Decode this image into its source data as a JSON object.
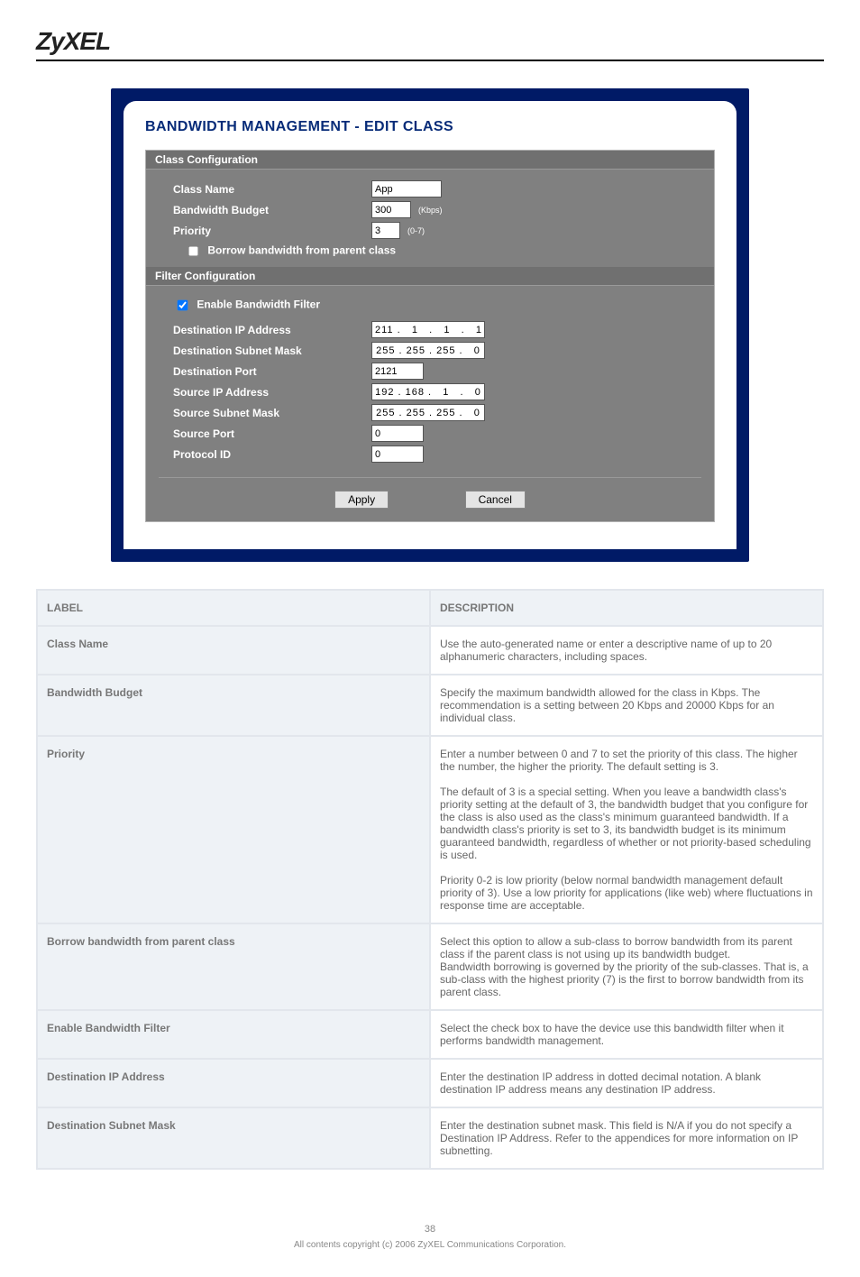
{
  "brand": "ZyXEL",
  "screenshot": {
    "title": "BANDWIDTH MANAGEMENT - EDIT CLASS",
    "section_class": "Class Configuration",
    "section_filter": "Filter Configuration",
    "class_name_label": "Class Name",
    "class_name_value": "App",
    "bw_budget_label": "Bandwidth Budget",
    "bw_budget_value": "300",
    "bw_budget_hint": "(Kbps)",
    "priority_label": "Priority",
    "priority_value": "3",
    "priority_hint": "(0-7)",
    "borrow_label": "Borrow bandwidth from parent class",
    "enable_filter_label": "Enable Bandwidth Filter",
    "dest_ip_label": "Destination IP Address",
    "dest_ip_value": "211 .   1   .   1   .   1",
    "dest_mask_label": "Destination Subnet Mask",
    "dest_mask_value": "255 . 255 . 255 .   0",
    "dest_port_label": "Destination Port",
    "dest_port_value": "2121",
    "src_ip_label": "Source IP Address",
    "src_ip_value": "192 . 168 .   1   .   0",
    "src_mask_label": "Source Subnet Mask",
    "src_mask_value": "255 . 255 . 255 .   0",
    "src_port_label": "Source Port",
    "src_port_value": "0",
    "proto_label": "Protocol ID",
    "proto_value": "0",
    "btn_apply": "Apply",
    "btn_cancel": "Cancel"
  },
  "table": {
    "header_label": "LABEL",
    "header_desc": "DESCRIPTION",
    "rows": [
      {
        "label": "Class Name",
        "desc": "Use the auto-generated name or enter a descriptive name of up to 20 alphanumeric characters, including spaces."
      },
      {
        "label": "Bandwidth Budget",
        "desc": "Specify the maximum bandwidth allowed for the class in Kbps. The recommendation is a setting between 20 Kbps and 20000 Kbps for an individual class."
      },
      {
        "label": "Priority",
        "desc": "Enter a number between 0 and 7 to set the priority of this class. The higher the number, the higher the priority. The default setting is 3.\n\nThe default of 3 is a special setting. When you leave a bandwidth class's priority setting at the default of 3, the bandwidth budget that you configure for the class is also used as the class's minimum guaranteed bandwidth. If a bandwidth class's priority is set to 3, its bandwidth budget is its minimum guaranteed bandwidth, regardless of whether or not priority-based scheduling is used.\n\nPriority 0-2 is low priority (below normal bandwidth management default priority of 3). Use a low priority for applications (like web) where fluctuations in response time are acceptable."
      },
      {
        "label": "Borrow bandwidth from parent class",
        "desc": "Select this option to allow a sub-class to borrow bandwidth from its parent class if the parent class is not using up its bandwidth budget.\nBandwidth borrowing is governed by the priority of the sub-classes. That is, a sub-class with the highest priority (7) is the first to borrow bandwidth from its parent class."
      },
      {
        "label": "Enable Bandwidth Filter",
        "desc": "Select the check box to have the device use this bandwidth filter when it performs bandwidth management."
      },
      {
        "label": "Destination IP Address",
        "desc": "Enter the destination IP address in dotted decimal notation. A blank destination IP address means any destination IP address."
      },
      {
        "label": "Destination Subnet Mask",
        "desc": "Enter the destination subnet mask. This field is N/A if you do not specify a Destination IP Address. Refer to the appendices for more information on IP subnetting."
      }
    ]
  },
  "footer_page": "38",
  "footer_note": "All contents copyright (c) 2006 ZyXEL Communications Corporation."
}
